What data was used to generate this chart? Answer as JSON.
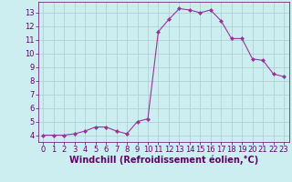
{
  "x": [
    0,
    1,
    2,
    3,
    4,
    5,
    6,
    7,
    8,
    9,
    10,
    11,
    12,
    13,
    14,
    15,
    16,
    17,
    18,
    19,
    20,
    21,
    22,
    23
  ],
  "y": [
    4.0,
    4.0,
    4.0,
    4.1,
    4.3,
    4.6,
    4.6,
    4.3,
    4.1,
    5.0,
    5.2,
    11.6,
    12.5,
    13.3,
    13.2,
    13.0,
    13.2,
    12.4,
    11.1,
    11.1,
    9.6,
    9.5,
    8.5,
    8.3
  ],
  "xlabel": "Windchill (Refroidissement éolien,°C)",
  "ylim": [
    3.5,
    13.8
  ],
  "xlim": [
    -0.5,
    23.5
  ],
  "yticks": [
    4,
    5,
    6,
    7,
    8,
    9,
    10,
    11,
    12,
    13
  ],
  "xticks": [
    0,
    1,
    2,
    3,
    4,
    5,
    6,
    7,
    8,
    9,
    10,
    11,
    12,
    13,
    14,
    15,
    16,
    17,
    18,
    19,
    20,
    21,
    22,
    23
  ],
  "line_color": "#993399",
  "marker": "D",
  "marker_size": 2.0,
  "bg_color": "#cceef0",
  "grid_color": "#aacccc",
  "axis_label_color": "#660066",
  "tick_color": "#660066",
  "xlabel_fontsize": 7.0,
  "tick_fontsize": 6.0
}
